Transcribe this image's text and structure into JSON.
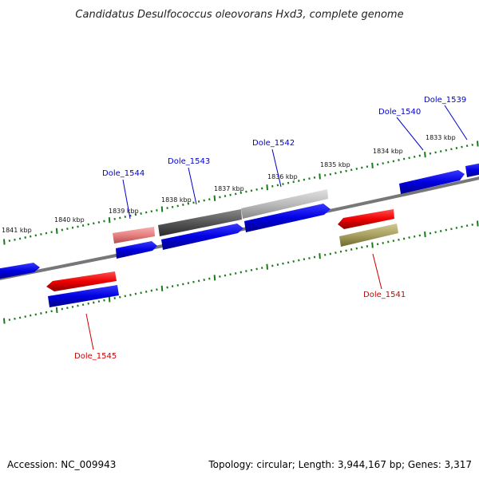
{
  "title": "Candidatus Desulfococcus oleovorans Hxd3, complete genome",
  "footer": {
    "accession": "Accession: NC_009943",
    "summary": "Topology: circular; Length: 3,944,167 bp; Genes: 3,317"
  },
  "kbp_labels": [
    "1841 kbp",
    "1840 kbp",
    "1839 kbp",
    "1838 kbp",
    "1837 kbp",
    "1836 kbp",
    "1835 kbp",
    "1834 kbp",
    "1833 kbp"
  ],
  "gene_labels": {
    "dole_1539": "Dole_1539",
    "dole_1540": "Dole_1540",
    "dole_1541": "Dole_1541",
    "dole_1542": "Dole_1542",
    "dole_1543": "Dole_1543",
    "dole_1544": "Dole_1544",
    "dole_1545": "Dole_1545"
  },
  "colors": {
    "cds_forward": "#0000e0",
    "rna_red": "#ee0000",
    "pink": "#e88a8a",
    "dark_gray": "#555555",
    "light_gray": "#bbbbbb",
    "olive": "#a8a060",
    "tick_green": "#1a7a1a",
    "backbone": "#777777"
  }
}
